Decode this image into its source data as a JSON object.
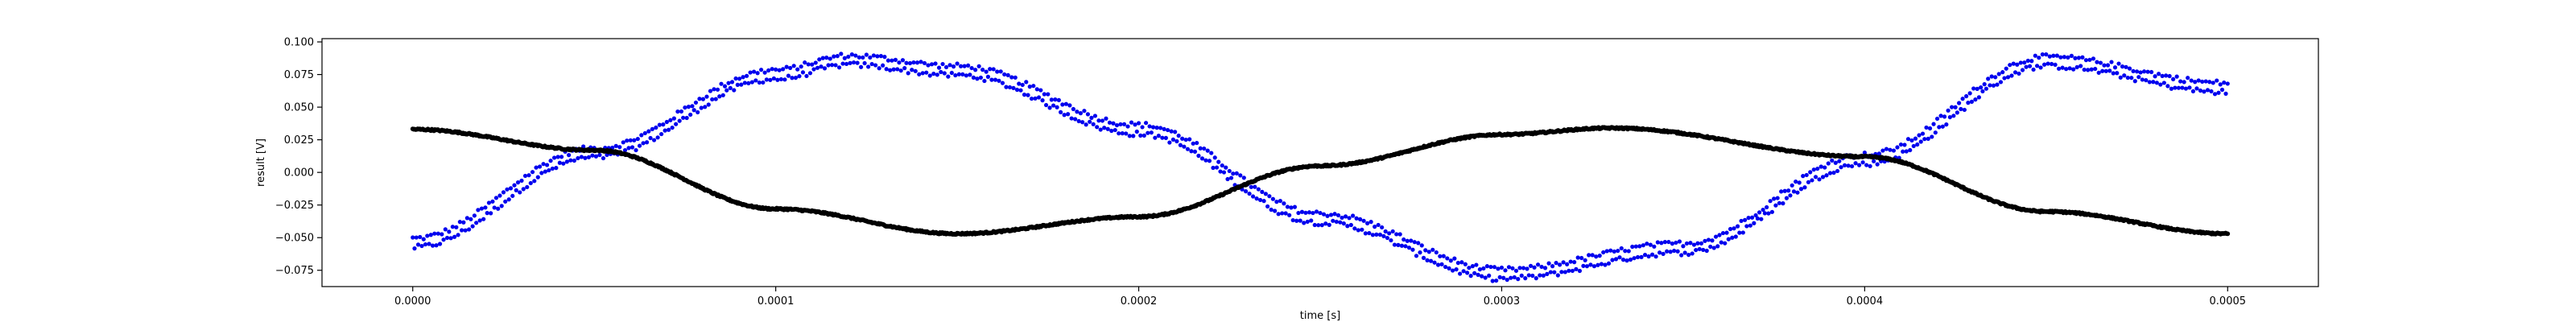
{
  "chart_data": {
    "type": "scatter",
    "title": "",
    "xlabel": "time [s]",
    "ylabel": "result [V]",
    "xlim": [
      -2.5e-05,
      0.000525
    ],
    "ylim": [
      -0.0875,
      0.1025
    ],
    "x_ticks": [
      0.0,
      0.0001,
      0.0002,
      0.0003,
      0.0004,
      0.0005
    ],
    "x_tick_labels": [
      "0.0000",
      "0.0001",
      "0.0002",
      "0.0003",
      "0.0004",
      "0.0005"
    ],
    "y_ticks": [
      -0.075,
      -0.05,
      -0.025,
      0.0,
      0.025,
      0.05,
      0.075,
      0.1
    ],
    "y_tick_labels": [
      "−0.075",
      "−0.050",
      "−0.025",
      "0.000",
      "0.025",
      "0.050",
      "0.075",
      "0.100"
    ],
    "grid": false,
    "legend": "none",
    "series": [
      {
        "color": "#0000ee",
        "marker": "dot",
        "x_range": [
          0.0,
          0.0005
        ],
        "sample_points": [
          {
            "x": 0.0,
            "y": -0.054
          },
          {
            "x": 5e-05,
            "y": 0.015
          },
          {
            "x": 0.0001,
            "y": 0.075
          },
          {
            "x": 0.00012,
            "y": 0.086
          },
          {
            "x": 0.00015,
            "y": 0.078
          },
          {
            "x": 0.0002,
            "y": 0.033
          },
          {
            "x": 0.00025,
            "y": -0.035
          },
          {
            "x": 0.0003,
            "y": -0.078
          },
          {
            "x": 0.00035,
            "y": -0.058
          },
          {
            "x": 0.0004,
            "y": 0.01
          },
          {
            "x": 0.00045,
            "y": 0.085
          },
          {
            "x": 0.0005,
            "y": 0.065
          }
        ]
      },
      {
        "color": "#000000",
        "marker": "dot",
        "x_range": [
          0.0,
          0.0005
        ],
        "sample_points": [
          {
            "x": 0.0,
            "y": 0.033
          },
          {
            "x": 5e-05,
            "y": 0.017
          },
          {
            "x": 0.0001,
            "y": -0.028
          },
          {
            "x": 0.00015,
            "y": -0.047
          },
          {
            "x": 0.0002,
            "y": -0.034
          },
          {
            "x": 0.00025,
            "y": 0.005
          },
          {
            "x": 0.0003,
            "y": 0.029
          },
          {
            "x": 0.00033,
            "y": 0.034
          },
          {
            "x": 0.0004,
            "y": 0.012
          },
          {
            "x": 0.00045,
            "y": -0.03
          },
          {
            "x": 0.0005,
            "y": -0.047
          }
        ]
      }
    ]
  }
}
